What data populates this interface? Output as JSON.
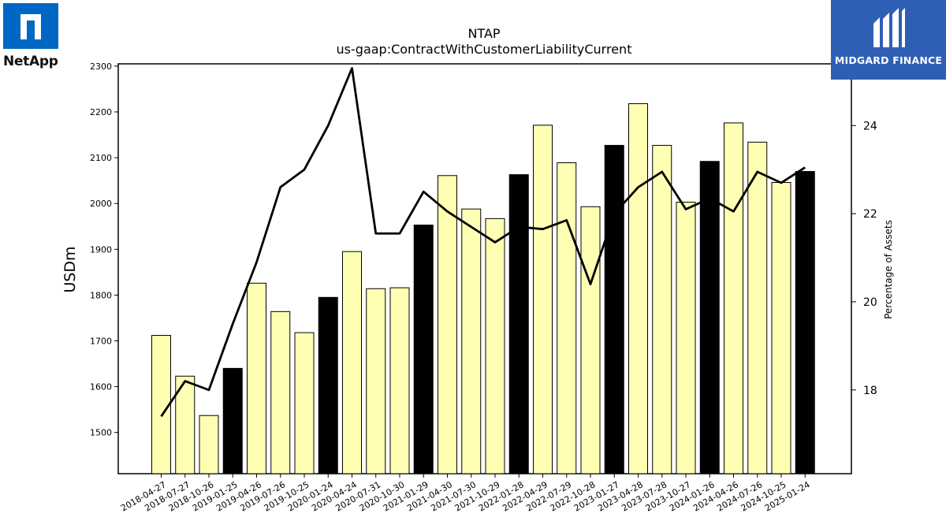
{
  "branding": {
    "left_logo_text": "NetApp",
    "right_logo_text": "MIDGARD FINANCE",
    "left_color": "#0067c5",
    "right_color": "#2f5fb5"
  },
  "chart_data": {
    "type": "bar",
    "title": "NTAP",
    "subtitle": "us-gaap:ContractWithCustomerLiabilityCurrent",
    "ylabel": "USDm",
    "y2label": "Percentage of Assets",
    "ylim": [
      1410,
      2305
    ],
    "y2lim": [
      16.1,
      25.4
    ],
    "yticks": [
      1500,
      1600,
      1700,
      1800,
      1900,
      2000,
      2100,
      2200,
      2300
    ],
    "y2ticks": [
      18,
      20,
      22,
      24
    ],
    "categories": [
      "2018-04-27",
      "2018-07-27",
      "2018-10-26",
      "2019-01-25",
      "2019-04-26",
      "2019-07-26",
      "2019-10-25",
      "2020-01-24",
      "2020-04-24",
      "2020-07-31",
      "2020-10-30",
      "2021-01-29",
      "2021-04-30",
      "2021-07-30",
      "2021-10-29",
      "2022-01-28",
      "2022-04-29",
      "2022-07-29",
      "2022-10-28",
      "2023-01-27",
      "2023-04-28",
      "2023-07-28",
      "2023-10-27",
      "2024-01-26",
      "2024-04-26",
      "2024-07-26",
      "2024-10-25",
      "2025-01-24"
    ],
    "series": [
      {
        "kind": "bar",
        "axis": "left",
        "values": [
          1712,
          1623,
          1537,
          1640,
          1826,
          1764,
          1718,
          1795,
          1895,
          1814,
          1816,
          1953,
          2061,
          1988,
          1967,
          2063,
          2171,
          2089,
          1993,
          2127,
          2218,
          2127,
          2003,
          2092,
          2176,
          2134,
          2046,
          2070
        ],
        "highlight": [
          false,
          false,
          false,
          true,
          false,
          false,
          false,
          true,
          false,
          false,
          false,
          true,
          false,
          false,
          false,
          true,
          false,
          false,
          false,
          true,
          false,
          false,
          false,
          true,
          false,
          false,
          false,
          true
        ],
        "color": "#ffffb3",
        "highlight_color": "#000000"
      },
      {
        "kind": "line",
        "axis": "right",
        "values": [
          17.4,
          18.2,
          18.0,
          19.5,
          20.9,
          22.6,
          23.0,
          24.0,
          25.3,
          21.55,
          21.55,
          22.5,
          22.05,
          21.7,
          21.35,
          21.7,
          21.65,
          21.85,
          20.4,
          22.0,
          22.6,
          22.95,
          22.1,
          22.35,
          22.05,
          22.95,
          22.7,
          23.05
        ],
        "color": "#000000"
      }
    ],
    "grid": false,
    "legend": "none"
  }
}
